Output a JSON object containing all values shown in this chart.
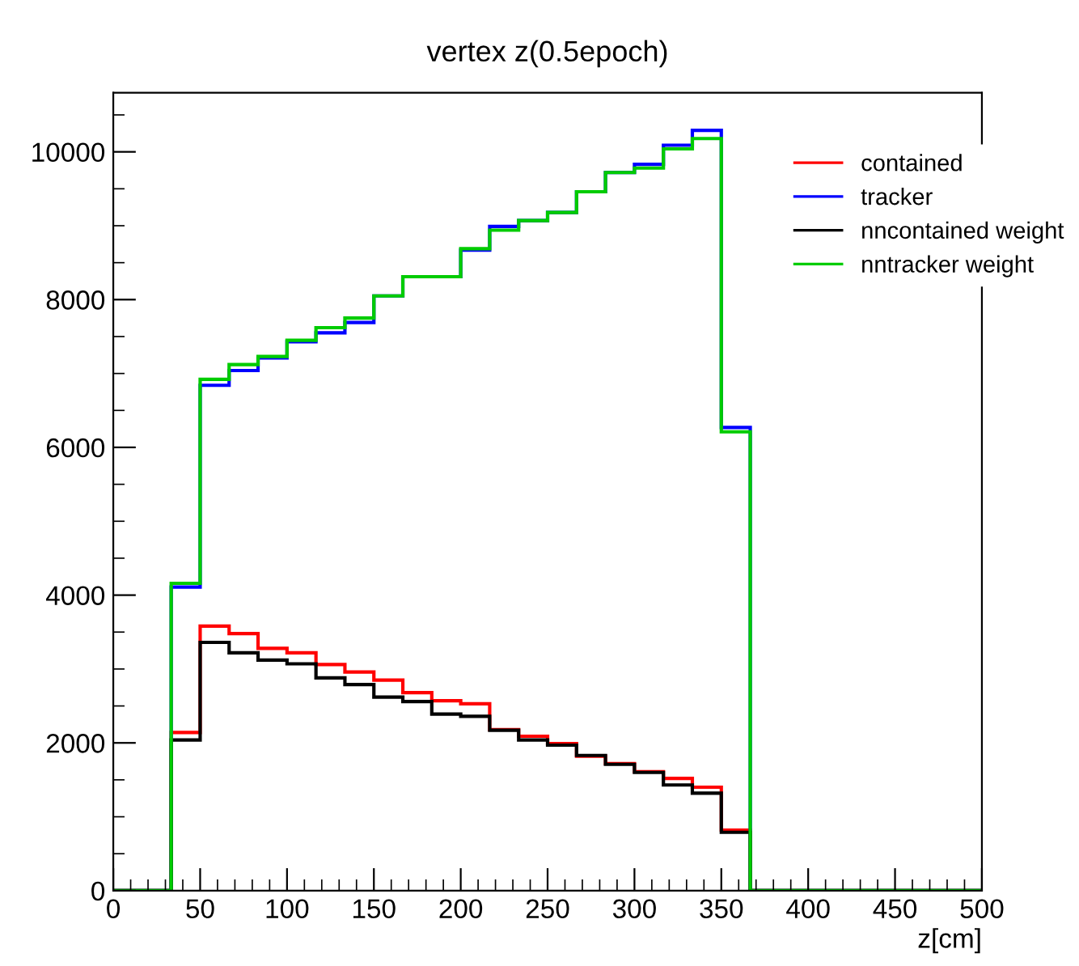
{
  "chart_data": {
    "type": "histogram",
    "title": "vertex z(0.5epoch)",
    "xlabel": "z[cm]",
    "bins": [
      0,
      16.67,
      33.33,
      50,
      66.67,
      83.33,
      100,
      116.67,
      133.33,
      150,
      166.67,
      183.33,
      200,
      216.67,
      233.33,
      250,
      266.67,
      283.33,
      300,
      316.67,
      333.33,
      350,
      366.67,
      383.33,
      400,
      416.67,
      433.33,
      450,
      466.67,
      483.33,
      500
    ],
    "series": [
      {
        "name": "contained",
        "color": "#ff0000",
        "values": [
          0,
          0,
          2140,
          3580,
          3480,
          3280,
          3220,
          3060,
          2960,
          2850,
          2680,
          2570,
          2530,
          2180,
          2090,
          1990,
          1820,
          1720,
          1610,
          1520,
          1400,
          820,
          0,
          0,
          0,
          0,
          0,
          0,
          0,
          0
        ]
      },
      {
        "name": "tracker",
        "color": "#0000ff",
        "values": [
          0,
          0,
          4110,
          6840,
          7040,
          7210,
          7430,
          7550,
          7690,
          8050,
          8310,
          8310,
          8670,
          8990,
          9070,
          9180,
          9460,
          9720,
          9830,
          10090,
          10290,
          6270,
          0,
          0,
          0,
          0,
          0,
          0,
          0,
          0
        ]
      },
      {
        "name": "nncontained weight",
        "color": "#000000",
        "values": [
          0,
          0,
          2040,
          3360,
          3220,
          3120,
          3070,
          2880,
          2790,
          2620,
          2560,
          2390,
          2360,
          2170,
          2040,
          1970,
          1830,
          1710,
          1600,
          1430,
          1320,
          790,
          0,
          0,
          0,
          0,
          0,
          0,
          0,
          0
        ]
      },
      {
        "name": "nntracker weight",
        "color": "#00cc00",
        "values": [
          0,
          0,
          4160,
          6920,
          7120,
          7230,
          7450,
          7620,
          7750,
          8050,
          8310,
          8310,
          8690,
          8940,
          9070,
          9180,
          9460,
          9720,
          9780,
          10040,
          10180,
          6210,
          0,
          0,
          0,
          0,
          0,
          0,
          0,
          0
        ]
      }
    ],
    "xlim": [
      0,
      500
    ],
    "xticks": [
      0,
      50,
      100,
      150,
      200,
      250,
      300,
      350,
      400,
      450,
      500
    ],
    "ylim": [
      0,
      10800
    ],
    "yticks": [
      0,
      2000,
      4000,
      6000,
      8000,
      10000
    ],
    "legend": "top right",
    "grid": false
  }
}
